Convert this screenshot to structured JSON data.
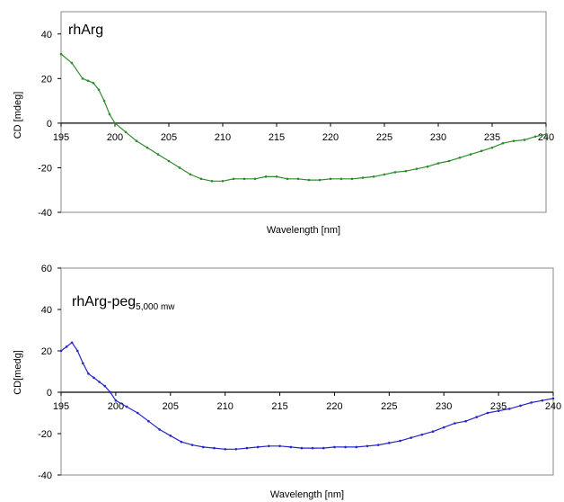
{
  "chart_data": [
    {
      "type": "line",
      "title": "rhArg",
      "title_sub": "",
      "xlabel": "Wavelength [nm]",
      "ylabel": "CD [mdeg]",
      "xlim": [
        195,
        240
      ],
      "ylim": [
        -40,
        50
      ],
      "xticks": [
        195,
        200,
        205,
        210,
        215,
        220,
        225,
        230,
        235,
        240
      ],
      "yticks": [
        -40,
        -20,
        0,
        20,
        40
      ],
      "color": "#2e8b2e",
      "grid": false,
      "series": [
        {
          "x": [
            195,
            196,
            197,
            197.5,
            198,
            198.5,
            199,
            199.5,
            200,
            201,
            202,
            203,
            204,
            205,
            206,
            207,
            208,
            209,
            210,
            211,
            212,
            213,
            214,
            215,
            216,
            217,
            218,
            219,
            220,
            221,
            222,
            223,
            224,
            225,
            226,
            227,
            228,
            229,
            230,
            231,
            232,
            233,
            234,
            235,
            236,
            237,
            238,
            239,
            240
          ],
          "values": [
            31,
            27,
            20,
            19,
            18,
            15,
            10,
            4,
            0,
            -4,
            -8,
            -11,
            -14,
            -17,
            -20,
            -23,
            -25,
            -26,
            -26,
            -25,
            -25,
            -25,
            -24,
            -24,
            -25,
            -25,
            -25.5,
            -25.5,
            -25,
            -25,
            -25,
            -24.5,
            -24,
            -23,
            -22,
            -21.5,
            -20.5,
            -19.5,
            -18,
            -17,
            -15.5,
            -14,
            -12.5,
            -11,
            -9,
            -8,
            -7.5,
            -6,
            -5
          ]
        }
      ]
    },
    {
      "type": "line",
      "title": "rhArg-peg",
      "title_sub": "5,000 mw",
      "xlabel": "Wavelength [nm]",
      "ylabel": "CD[medg]",
      "xlim": [
        195,
        240
      ],
      "ylim": [
        -40,
        60
      ],
      "xticks": [
        195,
        200,
        205,
        210,
        215,
        220,
        225,
        230,
        235,
        240
      ],
      "yticks": [
        -40,
        -20,
        0,
        20,
        40,
        60
      ],
      "color": "#2626c8",
      "grid": false,
      "series": [
        {
          "x": [
            195,
            195.5,
            196,
            196.5,
            197,
            197.5,
            198,
            198.5,
            199,
            199.5,
            200,
            201,
            202,
            203,
            204,
            205,
            206,
            207,
            208,
            209,
            210,
            211,
            212,
            213,
            214,
            215,
            216,
            217,
            218,
            219,
            220,
            221,
            222,
            223,
            224,
            225,
            226,
            227,
            228,
            229,
            230,
            231,
            232,
            233,
            234,
            235,
            236,
            237,
            238,
            239,
            240
          ],
          "values": [
            20,
            22,
            24,
            20,
            14,
            9,
            7,
            5,
            3,
            0,
            -4,
            -7,
            -10,
            -14,
            -18,
            -21,
            -24,
            -25.5,
            -26.5,
            -27,
            -27.5,
            -27.5,
            -27,
            -26.5,
            -26,
            -26,
            -26.5,
            -27,
            -27,
            -27,
            -26.5,
            -26.5,
            -26.5,
            -26,
            -25.5,
            -24.5,
            -23.5,
            -22,
            -20.5,
            -19,
            -17,
            -15,
            -14,
            -12,
            -10,
            -9,
            -8,
            -6.5,
            -5,
            -4,
            -3
          ]
        }
      ]
    }
  ]
}
